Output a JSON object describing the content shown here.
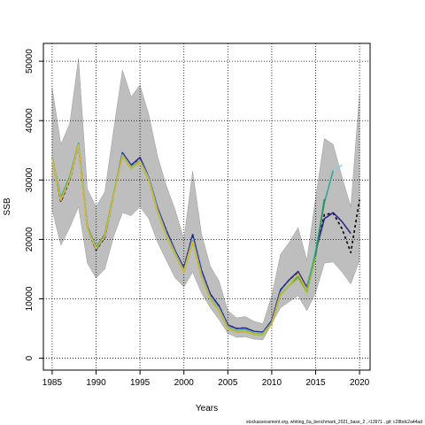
{
  "chart_data": {
    "type": "line",
    "xlabel": "Years",
    "ylabel": "SSB",
    "xlim": [
      1984,
      2021.2
    ],
    "ylim": [
      -2000,
      53000
    ],
    "x_ticks": [
      1985,
      1990,
      1995,
      2000,
      2005,
      2010,
      2015,
      2020
    ],
    "x_tick_labels": [
      "1985",
      "1990",
      "1995",
      "2000",
      "2005",
      "2010",
      "2015",
      "2020"
    ],
    "y_ticks": [
      0,
      10000,
      20000,
      30000,
      40000,
      50000
    ],
    "y_tick_labels": [
      "0",
      "10000",
      "20000",
      "30000",
      "40000",
      "50000"
    ],
    "grid": true,
    "footer": "stockassessment.org,  whiting_6a_benchmark_2021_base_2 , r13971 ,  git: c28bdc2a44ad",
    "confidence_band": {
      "x": [
        1985,
        1986,
        1987,
        1988,
        1989,
        1990,
        1991,
        1992,
        1993,
        1994,
        1995,
        1996,
        1997,
        1998,
        1999,
        2000,
        2001,
        2002,
        2003,
        2004,
        2005,
        2006,
        2007,
        2008,
        2009,
        2010,
        2011,
        2012,
        2013,
        2014,
        2015,
        2016,
        2017,
        2018,
        2019,
        2020
      ],
      "upper": [
        45500,
        36000,
        39500,
        50500,
        28500,
        25500,
        28000,
        38500,
        48500,
        44000,
        46000,
        41000,
        34000,
        29000,
        25000,
        20000,
        31500,
        21000,
        15500,
        13000,
        8000,
        6800,
        7000,
        6200,
        5800,
        10500,
        17500,
        19500,
        22000,
        16500,
        27000,
        37000,
        36000,
        30500,
        25500,
        44500
      ],
      "lower": [
        25000,
        19000,
        22000,
        25500,
        16000,
        13500,
        15000,
        20500,
        24500,
        24000,
        25500,
        23500,
        19500,
        16500,
        13500,
        12000,
        14500,
        11000,
        8500,
        6500,
        4200,
        3500,
        3600,
        3200,
        3100,
        5800,
        8500,
        9500,
        10500,
        8000,
        11000,
        16000,
        16200,
        14500,
        12500,
        16500
      ]
    },
    "series": [
      {
        "x": [
          1985,
          1986,
          1987,
          1988,
          1989,
          1990,
          1991,
          1992,
          1993,
          1994,
          1995,
          1996,
          1997,
          1998,
          1999,
          2000,
          2001,
          2002,
          2003,
          2004,
          2005,
          2006,
          2007,
          2008,
          2009,
          2010,
          2011,
          2012,
          2013,
          2014,
          2015,
          2016,
          2017,
          2018,
          2019,
          2020
        ],
        "values": [
          33800,
          26300,
          30000,
          36000,
          22000,
          18200,
          20300,
          27500,
          34500,
          32500,
          33700,
          30500,
          25200,
          21500,
          18000,
          15200,
          20800,
          14800,
          10800,
          8800,
          5600,
          5000,
          5100,
          4500,
          4400,
          6300,
          11500,
          13200,
          14500,
          11800,
          17800,
          24200,
          24400,
          21800,
          17800,
          26700
        ],
        "color": "#000000",
        "dash": "3,3"
      },
      {
        "x": [
          1985,
          1986,
          1987,
          1988,
          1989,
          1990,
          1991,
          1992,
          1993,
          1994,
          1995,
          1996,
          1997,
          1998,
          1999,
          2000,
          2001,
          2002,
          2003,
          2004,
          2005,
          2006,
          2007,
          2008,
          2009,
          2010,
          2011,
          2012,
          2013,
          2014,
          2015,
          2016,
          2017,
          2018,
          2019
        ],
        "values": [
          33800,
          26500,
          30200,
          36000,
          22000,
          18300,
          20400,
          27500,
          34600,
          32500,
          33800,
          30500,
          25300,
          21500,
          18100,
          15200,
          20800,
          14800,
          10800,
          8800,
          5600,
          5000,
          5100,
          4500,
          4400,
          6300,
          11500,
          13200,
          14600,
          11900,
          18000,
          23500,
          24500,
          23000,
          21000
        ],
        "color": "#2b2b8f"
      },
      {
        "x": [
          1985,
          1986,
          1987,
          1988,
          1989,
          1990,
          1991,
          1992,
          1993,
          1994,
          1995,
          1996,
          1997,
          1998,
          1999,
          2000,
          2001,
          2002,
          2003,
          2004,
          2005,
          2006,
          2007,
          2008,
          2009,
          2010,
          2011,
          2012,
          2013,
          2014,
          2015,
          2016,
          2017,
          2018
        ],
        "values": [
          33900,
          27200,
          30800,
          36400,
          22300,
          18800,
          20900,
          27800,
          34300,
          32200,
          33300,
          30400,
          25000,
          21000,
          17800,
          14800,
          20100,
          14200,
          10300,
          8400,
          5300,
          4700,
          4800,
          4300,
          4200,
          6000,
          11000,
          12700,
          14000,
          11500,
          18500,
          26000,
          31500,
          32500
        ],
        "color": "#8fd0df"
      },
      {
        "x": [
          1985,
          1986,
          1987,
          1988,
          1989,
          1990,
          1991,
          1992,
          1993,
          1994,
          1995,
          1996,
          1997,
          1998,
          1999,
          2000,
          2001,
          2002,
          2003,
          2004,
          2005,
          2006,
          2007,
          2008,
          2009,
          2010,
          2011,
          2012,
          2013,
          2014,
          2015,
          2016,
          2017
        ],
        "values": [
          33800,
          27000,
          30600,
          36200,
          22200,
          18700,
          20800,
          27600,
          34200,
          32100,
          33200,
          30200,
          24800,
          20800,
          17600,
          14700,
          19800,
          13900,
          10100,
          8200,
          5200,
          4600,
          4700,
          4200,
          4100,
          5900,
          10800,
          12400,
          13700,
          11300,
          18000,
          26200,
          31600
        ],
        "color": "#3aa58a"
      },
      {
        "x": [
          1985,
          1986,
          1987,
          1988,
          1989,
          1990,
          1991,
          1992,
          1993,
          1994,
          1995,
          1996,
          1997,
          1998,
          1999,
          2000,
          2001,
          2002,
          2003,
          2004,
          2005,
          2006,
          2007,
          2008,
          2009,
          2010,
          2011,
          2012,
          2013,
          2014,
          2015,
          2016
        ],
        "values": [
          33700,
          26800,
          30400,
          36100,
          22100,
          18600,
          20700,
          27500,
          34100,
          32000,
          33100,
          30100,
          24700,
          20700,
          17500,
          14600,
          19700,
          13800,
          10000,
          8100,
          5100,
          4500,
          4600,
          4100,
          4000,
          5800,
          10700,
          12300,
          13600,
          11200,
          17300,
          26800
        ],
        "color": "#2e8b57"
      },
      {
        "x": [
          1985,
          1986,
          1987,
          1988,
          1989,
          1990,
          1991,
          1992,
          1993,
          1994,
          1995,
          1996,
          1997,
          1998,
          1999,
          2000,
          2001,
          2002,
          2003,
          2004,
          2005,
          2006,
          2007,
          2008,
          2009,
          2010,
          2011,
          2012,
          2013,
          2014,
          2015
        ],
        "values": [
          33600,
          26700,
          30300,
          36000,
          22000,
          18500,
          20600,
          27400,
          34000,
          31900,
          33000,
          30000,
          24600,
          20600,
          17400,
          14500,
          19600,
          13700,
          9900,
          8000,
          5000,
          4400,
          4500,
          4000,
          3900,
          5700,
          10600,
          12200,
          13500,
          11100,
          17100
        ],
        "color": "#8fbc3a"
      },
      {
        "x": [
          1985,
          1986,
          1987,
          1988,
          1989,
          1990,
          1991,
          1992,
          1993,
          1994,
          1995,
          1996,
          1997,
          1998,
          1999,
          2000,
          2001,
          2002,
          2003,
          2004,
          2005,
          2006,
          2007,
          2008,
          2009,
          2010,
          2011,
          2012,
          2013,
          2014
        ],
        "values": [
          33700,
          26600,
          30200,
          36000,
          21900,
          18400,
          20500,
          27400,
          34100,
          32000,
          33100,
          30100,
          24700,
          20700,
          17500,
          14600,
          19700,
          13800,
          10000,
          8100,
          5100,
          4500,
          4600,
          4100,
          4000,
          5800,
          10700,
          12400,
          14200,
          11500
        ],
        "color": "#d6b83a"
      }
    ]
  }
}
